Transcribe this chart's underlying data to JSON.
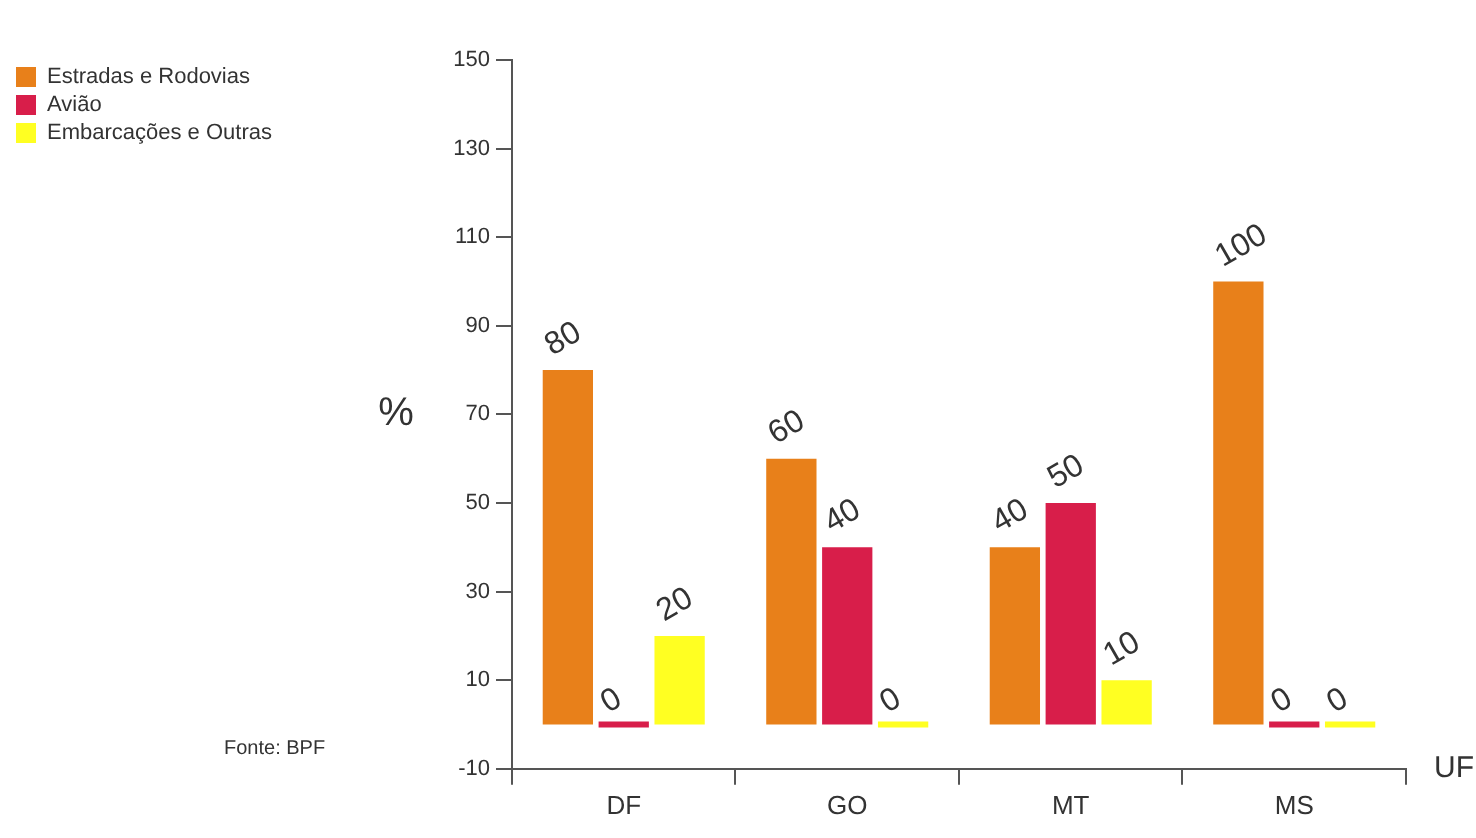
{
  "chart_data": {
    "type": "bar",
    "categories": [
      "DF",
      "GO",
      "MT",
      "MS"
    ],
    "series": [
      {
        "name": "Estradas e Rodovias",
        "color": "#e8801a",
        "values": [
          80,
          60,
          40,
          100
        ]
      },
      {
        "name": "Avião",
        "color": "#d81e4a",
        "values": [
          0,
          40,
          50,
          0
        ]
      },
      {
        "name": "Embarcações e Outras",
        "color": "#ffff22",
        "values": [
          20,
          0,
          10,
          0
        ]
      }
    ],
    "ylim": [
      -10,
      150
    ],
    "yticks": [
      -10,
      10,
      30,
      50,
      70,
      90,
      110,
      130,
      150
    ],
    "ylabel": "%",
    "xlabel": "UF",
    "grid": false,
    "legend": "left",
    "data_labels": true,
    "annotations": [
      "Fonte: BPF"
    ]
  }
}
